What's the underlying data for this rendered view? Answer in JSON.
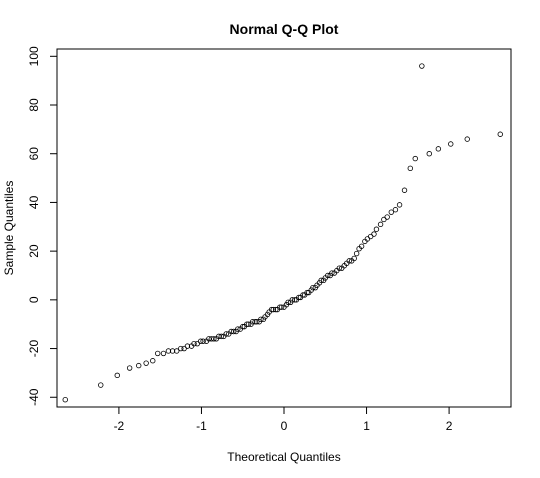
{
  "chart_data": {
    "type": "scatter",
    "title": "Normal Q-Q Plot",
    "xlabel": "Theoretical Quantiles",
    "ylabel": "Sample Quantiles",
    "xlim": [
      -2.75,
      2.75
    ],
    "ylim": [
      -44,
      103
    ],
    "x_ticks": [
      -2,
      -1,
      0,
      1,
      2
    ],
    "y_ticks": [
      -40,
      -20,
      0,
      20,
      40,
      60,
      80,
      100
    ],
    "x_tick_labels": [
      "-2",
      "-1",
      "0",
      "1",
      "2"
    ],
    "y_tick_labels": [
      "-40",
      "-20",
      "0",
      "20",
      "40",
      "60",
      "80",
      "100"
    ],
    "grid": false,
    "marker": "open-circle",
    "series": [
      {
        "x": [
          -2.65,
          -2.22,
          -2.02,
          -1.87,
          -1.76,
          -1.67,
          -1.59,
          -1.53,
          -1.46,
          -1.4,
          -1.35,
          -1.3,
          -1.25,
          -1.21,
          -1.17,
          -1.12,
          -1.09,
          -1.05,
          -1.01,
          -0.98,
          -0.94,
          -0.91,
          -0.88,
          -0.85,
          -0.82,
          -0.79,
          -0.76,
          -0.73,
          -0.7,
          -0.67,
          -0.64,
          -0.61,
          -0.58,
          -0.56,
          -0.53,
          -0.5,
          -0.48,
          -0.45,
          -0.43,
          -0.4,
          -0.38,
          -0.35,
          -0.33,
          -0.3,
          -0.28,
          -0.25,
          -0.23,
          -0.2,
          -0.18,
          -0.15,
          -0.13,
          -0.1,
          -0.08,
          -0.05,
          -0.03,
          0.0,
          0.03,
          0.05,
          0.08,
          0.1,
          0.13,
          0.15,
          0.18,
          0.2,
          0.23,
          0.25,
          0.28,
          0.3,
          0.33,
          0.35,
          0.38,
          0.4,
          0.43,
          0.45,
          0.48,
          0.5,
          0.53,
          0.56,
          0.58,
          0.61,
          0.64,
          0.67,
          0.7,
          0.73,
          0.76,
          0.79,
          0.82,
          0.85,
          0.88,
          0.91,
          0.94,
          0.98,
          1.01,
          1.05,
          1.09,
          1.12,
          1.17,
          1.21,
          1.25,
          1.3,
          1.35,
          1.4,
          1.46,
          1.53,
          1.59,
          1.67,
          1.76,
          1.87,
          2.02,
          2.22,
          2.62
        ],
        "y": [
          -41,
          -35,
          -31,
          -28,
          -27,
          -26,
          -25,
          -22,
          -22,
          -21,
          -21,
          -21,
          -20,
          -20,
          -19,
          -19,
          -18,
          -18,
          -17,
          -17,
          -17,
          -16,
          -16,
          -16,
          -16,
          -15,
          -15,
          -15,
          -14,
          -14,
          -13,
          -13,
          -13,
          -12,
          -12,
          -11,
          -11,
          -10,
          -10,
          -10,
          -9,
          -9,
          -9,
          -9,
          -8,
          -8,
          -7,
          -6,
          -5,
          -4,
          -4,
          -4,
          -4,
          -3,
          -3,
          -3,
          -2,
          -1,
          -1,
          0,
          0,
          0,
          1,
          1,
          2,
          2,
          3,
          3,
          4,
          5,
          5,
          6,
          7,
          8,
          8,
          9,
          10,
          10,
          11,
          11,
          12,
          13,
          13,
          14,
          15,
          16,
          16,
          17,
          19,
          21,
          22,
          24,
          25,
          26,
          27,
          29,
          31,
          33,
          34,
          36,
          37,
          39,
          45,
          54,
          58,
          96,
          60,
          62,
          64,
          66,
          68
        ]
      }
    ]
  }
}
